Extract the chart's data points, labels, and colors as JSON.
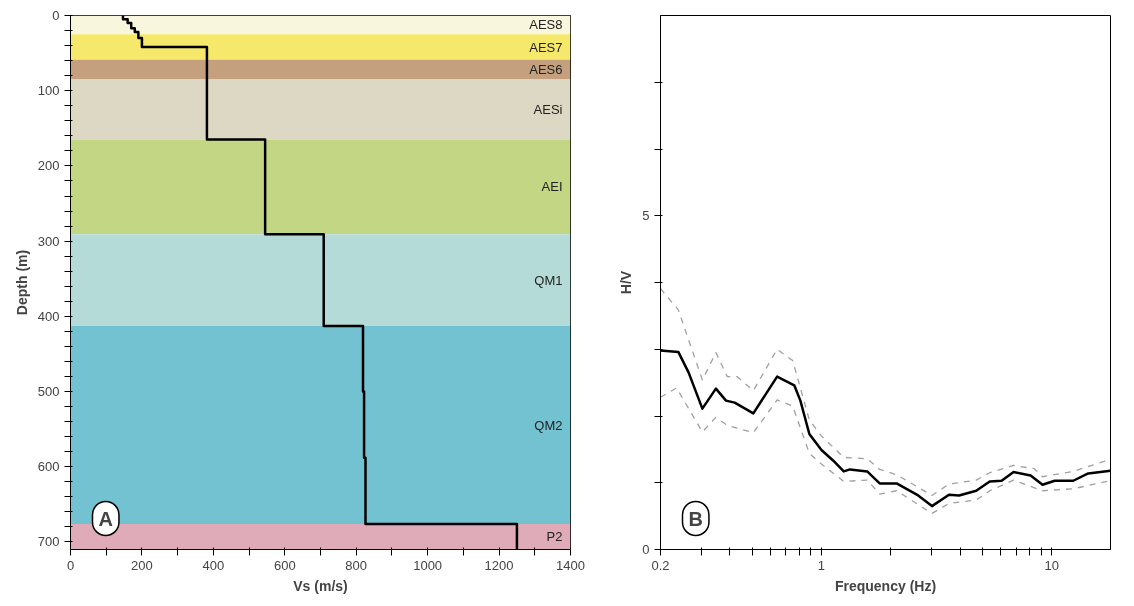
{
  "chart_data": [
    {
      "type": "line",
      "xlabel": "Vs (m/s)",
      "ylabel": "Depth (m)",
      "xlim": [
        0,
        1400
      ],
      "ylim": [
        710,
        0
      ],
      "xticks": [
        0,
        {
          "value": 100,
          "label": null
        },
        200,
        {
          "value": 300,
          "label": null
        },
        400,
        {
          "value": 500,
          "label": null
        },
        600,
        {
          "value": 700,
          "label": null
        },
        800,
        {
          "value": 900,
          "label": null
        },
        1000,
        {
          "value": 1100,
          "label": null
        },
        1200,
        {
          "value": 1300,
          "label": null
        },
        1400
      ],
      "yticks": [
        0,
        {
          "value": 20,
          "label": null
        },
        {
          "value": 40,
          "label": null
        },
        {
          "value": 60,
          "label": null
        },
        {
          "value": 80,
          "label": null
        },
        100,
        {
          "value": 120,
          "label": null
        },
        {
          "value": 140,
          "label": null
        },
        {
          "value": 160,
          "label": null
        },
        {
          "value": 180,
          "label": null
        },
        200,
        {
          "value": 220,
          "label": null
        },
        {
          "value": 240,
          "label": null
        },
        {
          "value": 260,
          "label": null
        },
        {
          "value": 280,
          "label": null
        },
        300,
        {
          "value": 320,
          "label": null
        },
        {
          "value": 340,
          "label": null
        },
        {
          "value": 360,
          "label": null
        },
        {
          "value": 380,
          "label": null
        },
        400,
        {
          "value": 420,
          "label": null
        },
        {
          "value": 440,
          "label": null
        },
        {
          "value": 460,
          "label": null
        },
        {
          "value": 480,
          "label": null
        },
        500,
        {
          "value": 520,
          "label": null
        },
        {
          "value": 540,
          "label": null
        },
        {
          "value": 560,
          "label": null
        },
        {
          "value": 580,
          "label": null
        },
        600,
        {
          "value": 620,
          "label": null
        },
        {
          "value": 640,
          "label": null
        },
        {
          "value": 660,
          "label": null
        },
        {
          "value": 680,
          "label": null
        },
        700
      ],
      "bands": [
        {
          "axis": "y",
          "from": 0,
          "to": 25,
          "label": "AES8",
          "color": "#f8f6dc"
        },
        {
          "axis": "y",
          "from": 25,
          "to": 59,
          "label": "AES7",
          "color": "#f5e86a"
        },
        {
          "axis": "y",
          "from": 59,
          "to": 85,
          "label": "AES6",
          "color": "#c4a07e"
        },
        {
          "axis": "y",
          "from": 85,
          "to": 165,
          "label": "AESi",
          "color": "#ddd8c4"
        },
        {
          "axis": "y",
          "from": 165,
          "to": 291,
          "label": "AEI",
          "color": "#c3d684"
        },
        {
          "axis": "y",
          "from": 291,
          "to": 413,
          "label": "QM1",
          "color": "#b4dbd8"
        },
        {
          "axis": "y",
          "from": 413,
          "to": 676,
          "label": "QM2",
          "color": "#72c2d2"
        },
        {
          "axis": "y",
          "from": 676,
          "to": 710,
          "label": "P2",
          "color": "#dfabb8"
        }
      ],
      "series": [
        {
          "color": "#000000",
          "line_style": "solid",
          "x": [
            147,
            147,
            160,
            160,
            170,
            170,
            180,
            180,
            190,
            190,
            200,
            200,
            382,
            382,
            545,
            545,
            709,
            709,
            819,
            819,
            822,
            822,
            826,
            826,
            1250,
            1250
          ],
          "values": [
            0,
            5,
            5,
            10,
            10,
            17,
            17,
            22,
            22,
            30,
            30,
            42,
            42,
            165,
            165,
            291,
            291,
            413,
            413,
            500,
            500,
            588,
            588,
            676,
            676,
            710
          ]
        }
      ],
      "annotations": [
        "A"
      ],
      "marker": "none"
    },
    {
      "type": "line",
      "xlabel": "Frequency (Hz)",
      "ylabel": "H/V",
      "log": "x",
      "xlim": [
        0.2,
        18
      ],
      "ylim": [
        0,
        8
      ],
      "xticks": [
        0.2,
        {
          "value": 0.3,
          "label": null
        },
        {
          "value": 0.4,
          "label": null
        },
        {
          "value": 0.5,
          "label": null
        },
        {
          "value": 0.6,
          "label": null
        },
        {
          "value": 0.7,
          "label": null
        },
        {
          "value": 0.8,
          "label": null
        },
        {
          "value": 0.9,
          "label": null
        },
        1,
        {
          "value": 2,
          "label": null
        },
        {
          "value": 3,
          "label": null
        },
        {
          "value": 4,
          "label": null
        },
        {
          "value": 5,
          "label": null
        },
        {
          "value": 6,
          "label": null
        },
        {
          "value": 7,
          "label": null
        },
        {
          "value": 8,
          "label": null
        },
        {
          "value": 9,
          "label": null
        },
        10
      ],
      "yticks": [
        0,
        {
          "value": 1,
          "label": null
        },
        {
          "value": 2,
          "label": null
        },
        {
          "value": 3,
          "label": null
        },
        {
          "value": 4,
          "label": null
        },
        5,
        {
          "value": 6,
          "label": null
        },
        {
          "value": 7,
          "label": null
        }
      ],
      "series": [
        {
          "color": "#000000",
          "line_style": "solid",
          "x": [
            0.2,
            0.239,
            0.265,
            0.304,
            0.348,
            0.385,
            0.42,
            0.506,
            0.642,
            0.762,
            0.81,
            0.886,
            1.0,
            1.126,
            1.25,
            1.33,
            1.58,
            1.79,
            2.12,
            2.63,
            3.02,
            3.58,
            3.96,
            4.7,
            5.38,
            6.06,
            6.83,
            8.1,
            9.12,
            10.3,
            12.4,
            14.4,
            18
          ],
          "values": [
            2.98,
            2.96,
            2.65,
            2.11,
            2.41,
            2.23,
            2.2,
            2.04,
            2.59,
            2.46,
            2.23,
            1.73,
            1.49,
            1.33,
            1.17,
            1.2,
            1.17,
            0.99,
            0.99,
            0.81,
            0.65,
            0.82,
            0.81,
            0.88,
            1.02,
            1.03,
            1.16,
            1.11,
            0.97,
            1.03,
            1.03,
            1.14,
            1.18
          ]
        },
        {
          "color": "#a0a0a0",
          "line_style": "dashed",
          "x": [
            0.2,
            0.239,
            0.304,
            0.348,
            0.39,
            0.43,
            0.506,
            0.642,
            0.75,
            0.886,
            1.0,
            1.25,
            1.58,
            1.79,
            2.12,
            3.02,
            3.58,
            4.7,
            5.38,
            6.83,
            8.4,
            9.12,
            12.4,
            18
          ],
          "values": [
            3.91,
            3.59,
            2.54,
            2.95,
            2.59,
            2.59,
            2.38,
            3.0,
            2.83,
            1.94,
            1.7,
            1.38,
            1.36,
            1.2,
            1.12,
            0.81,
            0.98,
            1.04,
            1.15,
            1.26,
            1.21,
            1.09,
            1.17,
            1.35
          ]
        },
        {
          "color": "#a0a0a0",
          "line_style": "dashed",
          "x": [
            0.2,
            0.235,
            0.304,
            0.348,
            0.39,
            0.506,
            0.642,
            0.75,
            0.886,
            1.0,
            1.25,
            1.58,
            1.79,
            2.12,
            3.02,
            3.58,
            4.7,
            5.38,
            6.83,
            9.12,
            12.4,
            18
          ],
          "values": [
            2.28,
            2.42,
            1.76,
            1.98,
            1.86,
            1.75,
            2.24,
            2.15,
            1.44,
            1.28,
            1.02,
            1.04,
            0.83,
            0.88,
            0.54,
            0.69,
            0.74,
            0.88,
            1.04,
            0.88,
            0.91,
            1.03
          ]
        }
      ],
      "annotations": [
        "B"
      ],
      "marker": "none"
    }
  ]
}
